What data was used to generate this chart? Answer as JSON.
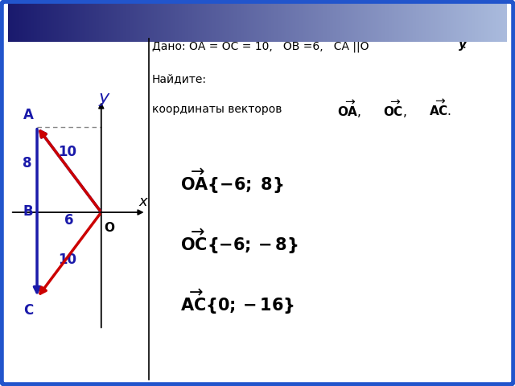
{
  "bg_color": "#ffffff",
  "border_color": "#2255cc",
  "header_gradient_left": "#1a1a6e",
  "header_gradient_right": "#aabbdd",
  "blue_color": "#1a1aaa",
  "red_color": "#cc0000",
  "O": [
    0,
    0
  ],
  "A": [
    -6,
    8
  ],
  "B": [
    -6,
    0
  ],
  "C": [
    -6,
    -8
  ],
  "xlim": [
    -8.5,
    4.5
  ],
  "ylim": [
    -11,
    11
  ],
  "dado_line": "Дано: ОА = ОС = 10,   ОВ =6,   СА ||О",
  "find_line": "Найдите:",
  "coords_line": "координаты векторов",
  "answer1_vec": "$\\overrightarrow{OA}$",
  "answer1_val": "{-6; 8}",
  "answer2_vec": "$\\overrightarrow{OC}$",
  "answer2_val": "{-6;-8}",
  "answer3_vec": "$\\overrightarrow{AC}$",
  "answer3_val": "{0;-16}"
}
